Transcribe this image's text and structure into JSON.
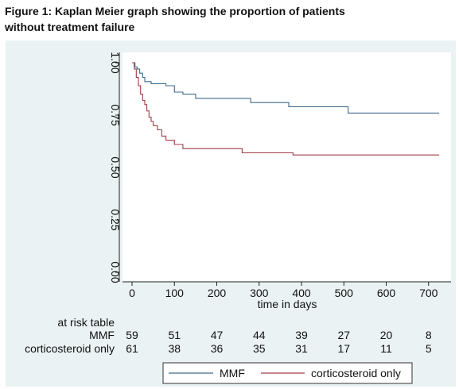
{
  "figure": {
    "title_line1": "Figure 1: Kaplan Meier graph showing the proportion of patients",
    "title_line2": "without treatment failure"
  },
  "colors": {
    "background": "#eaf2f3",
    "plot_area": "#ffffff",
    "mmf": "#3d6a8e",
    "corticosteroid": "#a23a47"
  },
  "chart_data": {
    "type": "line",
    "xlabel": "time in days",
    "ylabel": "",
    "xlim": [
      0,
      730
    ],
    "ylim": [
      0,
      1
    ],
    "x_ticks": [
      0,
      100,
      200,
      300,
      400,
      500,
      600,
      700
    ],
    "y_ticks": [
      0.0,
      0.25,
      0.5,
      0.75,
      1.0
    ],
    "y_tick_labels": [
      "0.00",
      "0.25",
      "0.50",
      "0.75",
      "1.00"
    ],
    "grid": false,
    "legend": "bottom",
    "series": [
      {
        "name": "MMF",
        "step": true,
        "x": [
          0,
          7,
          12,
          18,
          25,
          30,
          45,
          60,
          80,
          100,
          120,
          150,
          280,
          370,
          510,
          725
        ],
        "y": [
          1.0,
          0.98,
          0.97,
          0.95,
          0.93,
          0.91,
          0.9,
          0.9,
          0.89,
          0.86,
          0.85,
          0.83,
          0.81,
          0.79,
          0.76,
          0.76
        ]
      },
      {
        "name": "corticosteroid only",
        "step": true,
        "x": [
          0,
          5,
          10,
          15,
          20,
          25,
          30,
          35,
          40,
          45,
          50,
          60,
          70,
          80,
          100,
          120,
          150,
          260,
          380,
          725
        ],
        "y": [
          1.0,
          0.97,
          0.93,
          0.89,
          0.85,
          0.82,
          0.8,
          0.77,
          0.74,
          0.72,
          0.7,
          0.68,
          0.65,
          0.63,
          0.61,
          0.59,
          0.59,
          0.57,
          0.56,
          0.56
        ]
      }
    ],
    "risk_table": {
      "title": "at risk table",
      "times": [
        0,
        100,
        200,
        300,
        400,
        500,
        600,
        700
      ],
      "rows": [
        {
          "label": "MMF",
          "values": [
            "59",
            "51",
            "47",
            "44",
            "39",
            "27",
            "20",
            "8"
          ]
        },
        {
          "label": "corticosteroid only",
          "values": [
            "61",
            "38",
            "36",
            "35",
            "31",
            "17",
            "11",
            "5"
          ]
        }
      ]
    }
  }
}
